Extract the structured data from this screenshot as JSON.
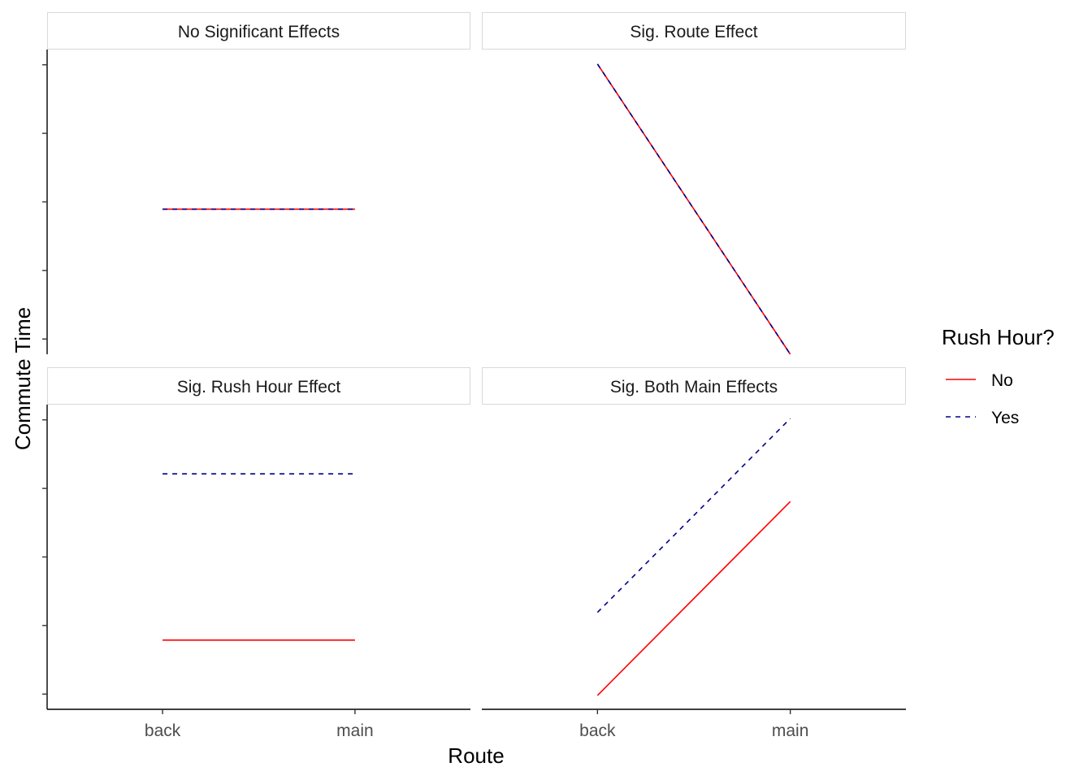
{
  "chart_data": {
    "type": "line",
    "xlabel": "Route",
    "ylabel": "Commute Time",
    "categories": [
      "back",
      "main"
    ],
    "facet_layout": "2x2",
    "y_tick_labels_shown": false,
    "grid": false,
    "shared_y_scale": false,
    "legend": {
      "title": "Rush Hour?",
      "placement": "right",
      "entries": [
        {
          "label": "No",
          "color": "#ff0000",
          "linetype": "solid"
        },
        {
          "label": "Yes",
          "color": "#00008b",
          "linetype": "dashed"
        }
      ]
    },
    "panels": [
      {
        "title": "No Significant Effects",
        "ylim": [
          0,
          2.1
        ],
        "series": [
          {
            "name": "No",
            "values": [
              1,
              1
            ]
          },
          {
            "name": "Yes",
            "values": [
              1,
              1
            ]
          }
        ]
      },
      {
        "title": "Sig. Route Effect",
        "ylim": [
          0,
          2.1
        ],
        "series": [
          {
            "name": "No",
            "values": [
              2,
              0
            ]
          },
          {
            "name": "Yes",
            "values": [
              2,
              0
            ]
          }
        ]
      },
      {
        "title": "Sig. Rush Hour Effect",
        "ylim": [
          -0.2,
          4.2
        ],
        "series": [
          {
            "name": "No",
            "values": [
              0.8,
              0.8
            ]
          },
          {
            "name": "Yes",
            "values": [
              3.2,
              3.2
            ]
          }
        ]
      },
      {
        "title": "Sig. Both Main Effects",
        "ylim": [
          -0.2,
          4.2
        ],
        "series": [
          {
            "name": "No",
            "values": [
              0,
              2.8
            ]
          },
          {
            "name": "Yes",
            "values": [
              1.2,
              4
            ]
          }
        ]
      }
    ]
  }
}
